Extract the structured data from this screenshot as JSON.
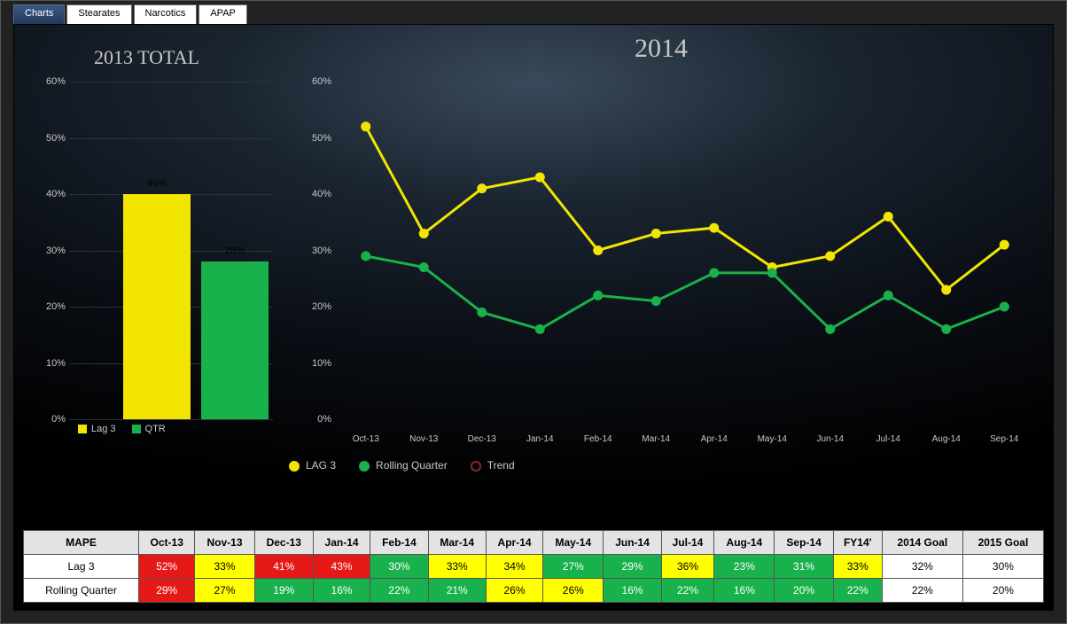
{
  "tabs": [
    {
      "label": "Charts",
      "active": true
    },
    {
      "label": "Stearates",
      "active": false
    },
    {
      "label": "Narcotics",
      "active": false
    },
    {
      "label": "APAP",
      "active": false
    }
  ],
  "colors": {
    "lag3": "#f2e600",
    "qtr": "#19b14b",
    "trend": "#8a2a2a",
    "red": "#e61919",
    "yellow": "#ffff00",
    "green": "#19b14b",
    "white": "#ffffff",
    "header": "#e3e3e3",
    "axis_text": "#c8c8c8",
    "gridline": "#2a3240"
  },
  "bar_chart": {
    "title": "2013 TOTAL",
    "title_fontsize": 22,
    "ylim": [
      0,
      60
    ],
    "ytick_step": 10,
    "ysuffix": "%",
    "bars": [
      {
        "label": "Lag 3",
        "value": 40,
        "color": "#f2e600",
        "value_text": "40%",
        "text_color": "#000000"
      },
      {
        "label": "QTR",
        "value": 28,
        "color": "#19b14b",
        "value_text": "28%",
        "text_color": "#000000"
      }
    ],
    "legend": [
      {
        "swatch": "#f2e600",
        "label": "Lag 3"
      },
      {
        "swatch": "#19b14b",
        "label": "QTR"
      }
    ]
  },
  "line_chart": {
    "title": "2014",
    "title_fontsize": 30,
    "ylim": [
      0,
      60
    ],
    "ytick_step": 10,
    "ysuffix": "%",
    "categories": [
      "Oct-13",
      "Nov-13",
      "Dec-13",
      "Jan-14",
      "Feb-14",
      "Mar-14",
      "Apr-14",
      "May-14",
      "Jun-14",
      "Jul-14",
      "Aug-14",
      "Sep-14"
    ],
    "series": [
      {
        "name": "LAG 3",
        "color": "#f2e600",
        "marker": "circle",
        "values": [
          52,
          33,
          41,
          43,
          30,
          33,
          34,
          27,
          29,
          36,
          23,
          31
        ]
      },
      {
        "name": "Rolling Quarter",
        "color": "#19b14b",
        "marker": "circle",
        "values": [
          29,
          27,
          19,
          16,
          22,
          21,
          26,
          26,
          16,
          22,
          16,
          20
        ]
      }
    ],
    "legend": [
      {
        "type": "dot",
        "color": "#f2e600",
        "label": "LAG 3"
      },
      {
        "type": "dot",
        "color": "#19b14b",
        "label": "Rolling Quarter"
      },
      {
        "type": "hollow",
        "color": "#8a2a2a",
        "label": "Trend"
      }
    ],
    "line_width": 3,
    "marker_radius": 5
  },
  "table": {
    "row_header": "MAPE",
    "columns": [
      "Oct-13",
      "Nov-13",
      "Dec-13",
      "Jan-14",
      "Feb-14",
      "Mar-14",
      "Apr-14",
      "May-14",
      "Jun-14",
      "Jul-14",
      "Aug-14",
      "Sep-14",
      "FY14'",
      "2014 Goal",
      "2015 Goal"
    ],
    "rows": [
      {
        "label": "Lag 3",
        "cells": [
          {
            "v": "52%",
            "c": "red"
          },
          {
            "v": "33%",
            "c": "yellow"
          },
          {
            "v": "41%",
            "c": "red"
          },
          {
            "v": "43%",
            "c": "red"
          },
          {
            "v": "30%",
            "c": "green"
          },
          {
            "v": "33%",
            "c": "yellow"
          },
          {
            "v": "34%",
            "c": "yellow"
          },
          {
            "v": "27%",
            "c": "green"
          },
          {
            "v": "29%",
            "c": "green"
          },
          {
            "v": "36%",
            "c": "yellow"
          },
          {
            "v": "23%",
            "c": "green"
          },
          {
            "v": "31%",
            "c": "green"
          },
          {
            "v": "33%",
            "c": "yellow"
          },
          {
            "v": "32%",
            "c": "white"
          },
          {
            "v": "30%",
            "c": "white"
          }
        ]
      },
      {
        "label": "Rolling Quarter",
        "cells": [
          {
            "v": "29%",
            "c": "red"
          },
          {
            "v": "27%",
            "c": "yellow"
          },
          {
            "v": "19%",
            "c": "green"
          },
          {
            "v": "16%",
            "c": "green"
          },
          {
            "v": "22%",
            "c": "green"
          },
          {
            "v": "21%",
            "c": "green"
          },
          {
            "v": "26%",
            "c": "yellow"
          },
          {
            "v": "26%",
            "c": "yellow"
          },
          {
            "v": "16%",
            "c": "green"
          },
          {
            "v": "22%",
            "c": "green"
          },
          {
            "v": "16%",
            "c": "green"
          },
          {
            "v": "20%",
            "c": "green"
          },
          {
            "v": "22%",
            "c": "green"
          },
          {
            "v": "22%",
            "c": "white"
          },
          {
            "v": "20%",
            "c": "white"
          }
        ]
      }
    ],
    "cell_text": {
      "red": "#ffffff",
      "yellow": "#000000",
      "green": "#ffffff",
      "white": "#000000"
    }
  }
}
